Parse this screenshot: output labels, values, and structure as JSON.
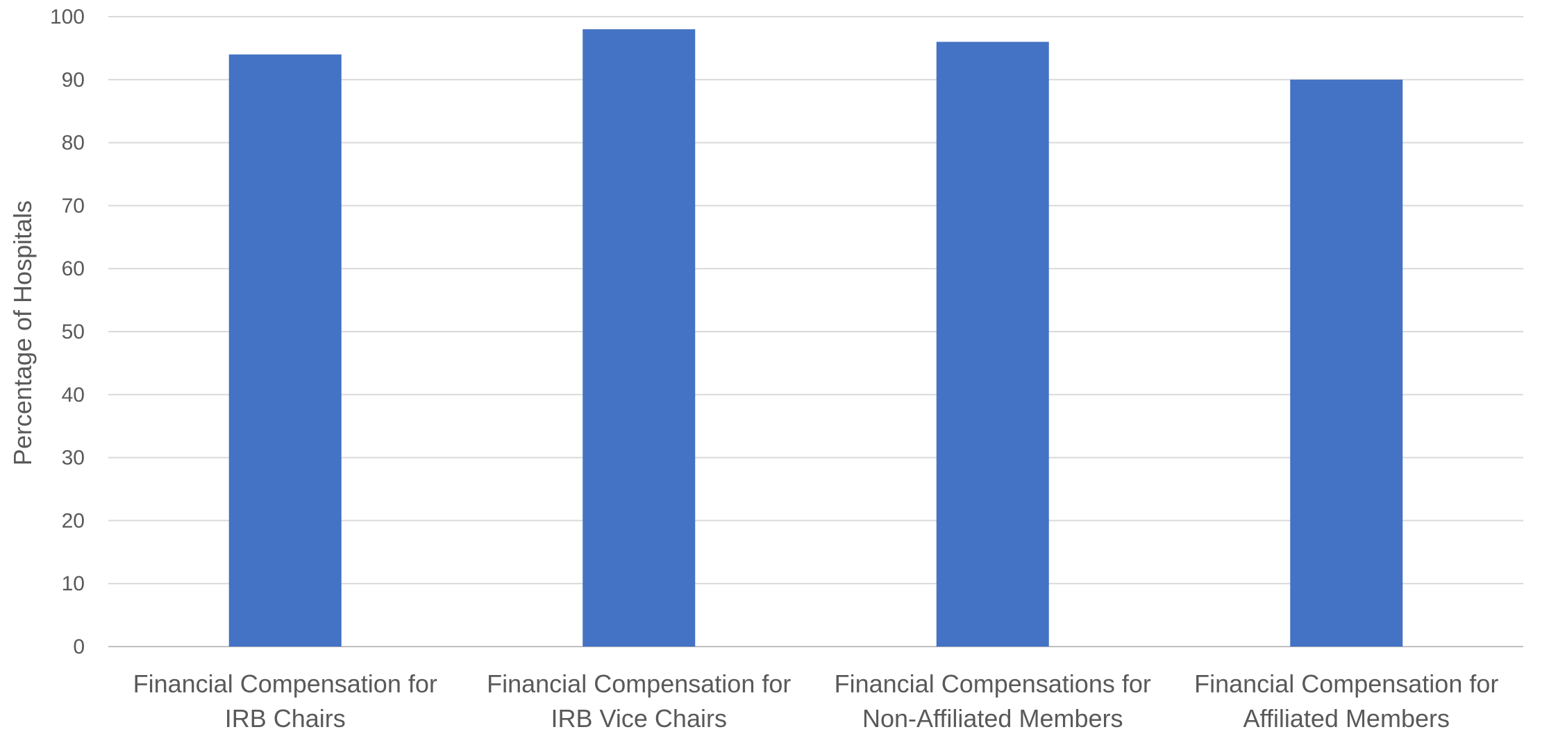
{
  "chart_data": {
    "type": "bar",
    "title": "",
    "xlabel": "",
    "ylabel": "Percentage of Hospitals",
    "ylim": [
      0,
      100
    ],
    "yticks": [
      0,
      10,
      20,
      30,
      40,
      50,
      60,
      70,
      80,
      90,
      100
    ],
    "grid": true,
    "legend": "none",
    "bar_color": "#4472C4",
    "categories": [
      [
        "Financial Compensation for",
        "IRB Chairs"
      ],
      [
        "Financial Compensation for",
        "IRB Vice Chairs"
      ],
      [
        "Financial Compensations for",
        "Non-Affiliated Members"
      ],
      [
        "Financial Compensation for",
        "Affiliated Members"
      ]
    ],
    "values": [
      94,
      98,
      96,
      90
    ]
  }
}
